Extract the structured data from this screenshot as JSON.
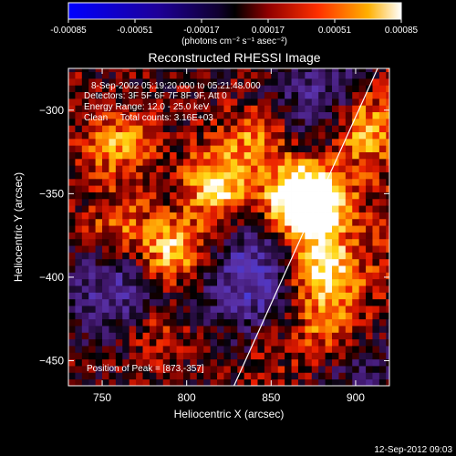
{
  "chart_data": {
    "type": "heatmap",
    "title": "Reconstructed RHESSI Image",
    "xlabel": "Heliocentric X (arcsec)",
    "ylabel": "Heliocentric Y (arcsec)",
    "xlim": [
      730,
      920
    ],
    "ylim": [
      -465,
      -275
    ],
    "x_ticks": [
      750,
      800,
      850,
      900
    ],
    "y_ticks": [
      -300,
      -350,
      -400,
      -450
    ],
    "colorbar": {
      "ticks": [
        "-0.00085",
        "-0.00051",
        "-0.00017",
        "0.00017",
        "0.00051",
        "0.00085"
      ],
      "range": [
        -0.00085,
        0.00085
      ],
      "units_line": "(photons cm⁻² s⁻¹ asec⁻²)"
    },
    "info_lines": [
      "8-Sep-2002 05:19:20.000 to 05:21:48.000",
      "Detectors: 3F 5F 6F 7F 8F 9F, Att 0",
      "Energy Range: 12.0 - 25.0 keV",
      "Clean     Total counts: 3.16E+03"
    ],
    "peak_text": "Position of Peak = [873,-357]",
    "peak": [
      873,
      -357
    ],
    "limb_line": [
      [
        828,
        -465
      ],
      [
        913,
        -275
      ]
    ],
    "hotspots": [
      {
        "x": 873,
        "y": -357,
        "v": 0.00085
      },
      {
        "x": 868,
        "y": -352,
        "v": 0.0008
      },
      {
        "x": 818,
        "y": -345,
        "v": 0.0007
      },
      {
        "x": 792,
        "y": -385,
        "v": 0.00075
      },
      {
        "x": 880,
        "y": -395,
        "v": 0.0007
      },
      {
        "x": 905,
        "y": -310,
        "v": 0.00055
      },
      {
        "x": 760,
        "y": -320,
        "v": 0.0005
      },
      {
        "x": 840,
        "y": -318,
        "v": 0.00045
      },
      {
        "x": 760,
        "y": -370,
        "v": 0.0004
      },
      {
        "x": 885,
        "y": -430,
        "v": 0.00045
      },
      {
        "x": 780,
        "y": -432,
        "v": 0.00035
      }
    ],
    "coldspots": [
      {
        "x": 840,
        "y": -400,
        "v": -0.0006
      },
      {
        "x": 760,
        "y": -410,
        "v": -0.0005
      },
      {
        "x": 880,
        "y": -290,
        "v": -0.0004
      },
      {
        "x": 905,
        "y": -455,
        "v": -0.0004
      }
    ]
  },
  "footer": {
    "timestamp": "12-Sep-2012 09:03"
  }
}
